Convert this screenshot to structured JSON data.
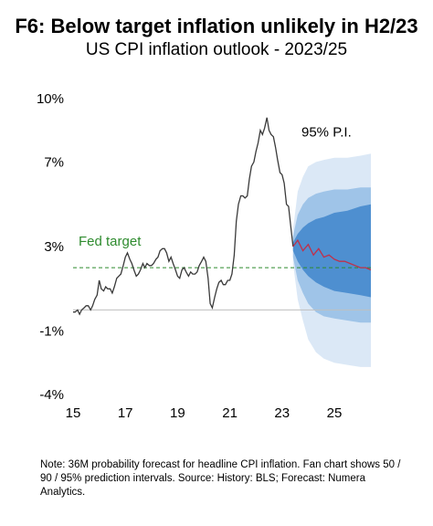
{
  "title": "F6: Below target inflation unlikely in H2/23",
  "subtitle": "US CPI inflation outlook - 2023/25",
  "note": "Note: 36M probability forecast for headline CPI inflation.  Fan chart shows 50 / 90 / 95% prediction intervals.  Source: History:  BLS; Forecast: Numera Analytics.",
  "chart_data": {
    "type": "line",
    "title": "US CPI inflation outlook - 2023/25",
    "xlim": [
      2015,
      2026.4
    ],
    "ylim": [
      -4,
      10
    ],
    "y_ticks": [
      {
        "value": 10,
        "label": "10%"
      },
      {
        "value": 7,
        "label": "7%"
      },
      {
        "value": 3,
        "label": "3%"
      },
      {
        "value": -1,
        "label": "-1%"
      },
      {
        "value": -4,
        "label": "-4%"
      }
    ],
    "x_ticks": [
      {
        "value": 2015,
        "label": "15"
      },
      {
        "value": 2017,
        "label": "17"
      },
      {
        "value": 2019,
        "label": "19"
      },
      {
        "value": 2021,
        "label": "21"
      },
      {
        "value": 2023,
        "label": "23"
      },
      {
        "value": 2025,
        "label": "25"
      }
    ],
    "fed_target": {
      "value": 2,
      "label": "Fed target",
      "color": "#2e8b2e"
    },
    "zero_line": {
      "value": 0,
      "color": "#bfbfbf"
    },
    "pi_label": "95% P.I.",
    "colors": {
      "history": "#3a3a3a",
      "forecast": "#c0304a",
      "band95": "#dbe8f6",
      "band90": "#9fc4e8",
      "band50": "#4e8fd0"
    },
    "history": {
      "x": [
        2015.0,
        2015.08,
        2015.17,
        2015.25,
        2015.33,
        2015.42,
        2015.5,
        2015.58,
        2015.67,
        2015.75,
        2015.83,
        2015.92,
        2016.0,
        2016.08,
        2016.17,
        2016.25,
        2016.33,
        2016.42,
        2016.5,
        2016.58,
        2016.67,
        2016.75,
        2016.83,
        2016.92,
        2017.0,
        2017.08,
        2017.17,
        2017.25,
        2017.33,
        2017.42,
        2017.5,
        2017.58,
        2017.67,
        2017.75,
        2017.83,
        2017.92,
        2018.0,
        2018.08,
        2018.17,
        2018.25,
        2018.33,
        2018.42,
        2018.5,
        2018.58,
        2018.67,
        2018.75,
        2018.83,
        2018.92,
        2019.0,
        2019.08,
        2019.17,
        2019.25,
        2019.33,
        2019.42,
        2019.5,
        2019.58,
        2019.67,
        2019.75,
        2019.83,
        2019.92,
        2020.0,
        2020.08,
        2020.17,
        2020.25,
        2020.33,
        2020.42,
        2020.5,
        2020.58,
        2020.67,
        2020.75,
        2020.83,
        2020.92,
        2021.0,
        2021.08,
        2021.17,
        2021.25,
        2021.33,
        2021.42,
        2021.5,
        2021.58,
        2021.67,
        2021.75,
        2021.83,
        2021.92,
        2022.0,
        2022.08,
        2022.17,
        2022.25,
        2022.33,
        2022.42,
        2022.5,
        2022.58,
        2022.67,
        2022.75,
        2022.83,
        2022.92,
        2023.0,
        2023.08,
        2023.17,
        2023.25,
        2023.33,
        2023.42
      ],
      "y": [
        -0.1,
        -0.1,
        0.0,
        -0.2,
        0.0,
        0.1,
        0.2,
        0.2,
        0.0,
        0.2,
        0.5,
        0.7,
        1.4,
        1.0,
        0.9,
        1.1,
        1.0,
        1.0,
        0.8,
        1.1,
        1.5,
        1.6,
        1.7,
        2.1,
        2.5,
        2.7,
        2.4,
        2.2,
        1.9,
        1.6,
        1.7,
        1.9,
        2.2,
        2.0,
        2.2,
        2.1,
        2.1,
        2.2,
        2.4,
        2.5,
        2.8,
        2.9,
        2.9,
        2.7,
        2.3,
        2.5,
        2.2,
        1.9,
        1.6,
        1.5,
        1.9,
        2.0,
        1.8,
        1.6,
        1.8,
        1.7,
        1.7,
        1.8,
        2.1,
        2.3,
        2.5,
        2.3,
        1.5,
        0.3,
        0.1,
        0.6,
        1.0,
        1.3,
        1.4,
        1.2,
        1.2,
        1.4,
        1.4,
        1.7,
        2.6,
        4.2,
        5.0,
        5.4,
        5.4,
        5.3,
        5.4,
        6.2,
        6.8,
        7.0,
        7.5,
        7.9,
        8.5,
        8.3,
        8.6,
        9.1,
        8.5,
        8.3,
        8.2,
        7.7,
        7.1,
        6.5,
        6.4,
        6.0,
        5.0,
        4.9,
        4.0,
        3.0
      ]
    },
    "forecast": {
      "x": [
        2023.42,
        2023.6,
        2023.8,
        2024.0,
        2024.2,
        2024.4,
        2024.6,
        2024.8,
        2025.0,
        2025.2,
        2025.4,
        2025.6,
        2025.8,
        2026.0,
        2026.2,
        2026.4
      ],
      "y": [
        3.0,
        3.3,
        2.8,
        3.1,
        2.6,
        2.9,
        2.5,
        2.6,
        2.4,
        2.3,
        2.3,
        2.2,
        2.1,
        2.0,
        2.0,
        1.9
      ]
    },
    "bands": {
      "x": [
        2023.42,
        2023.6,
        2023.8,
        2024.0,
        2024.3,
        2024.6,
        2025.0,
        2025.5,
        2026.0,
        2026.4
      ],
      "p50_upper": [
        3.2,
        3.6,
        3.9,
        4.1,
        4.3,
        4.4,
        4.6,
        4.7,
        4.9,
        5.0
      ],
      "p50_lower": [
        2.8,
        2.3,
        1.9,
        1.6,
        1.3,
        1.1,
        0.9,
        0.8,
        0.7,
        0.6
      ],
      "p90_upper": [
        3.5,
        4.5,
        5.0,
        5.3,
        5.5,
        5.6,
        5.7,
        5.7,
        5.8,
        5.8
      ],
      "p90_lower": [
        2.5,
        1.4,
        0.8,
        0.3,
        -0.1,
        -0.3,
        -0.4,
        -0.5,
        -0.6,
        -0.6
      ],
      "p95_upper": [
        3.8,
        5.6,
        6.3,
        6.8,
        7.0,
        7.1,
        7.2,
        7.2,
        7.3,
        7.4
      ],
      "p95_lower": [
        2.2,
        0.5,
        -0.5,
        -1.4,
        -2.0,
        -2.3,
        -2.5,
        -2.6,
        -2.7,
        -2.7
      ]
    }
  }
}
